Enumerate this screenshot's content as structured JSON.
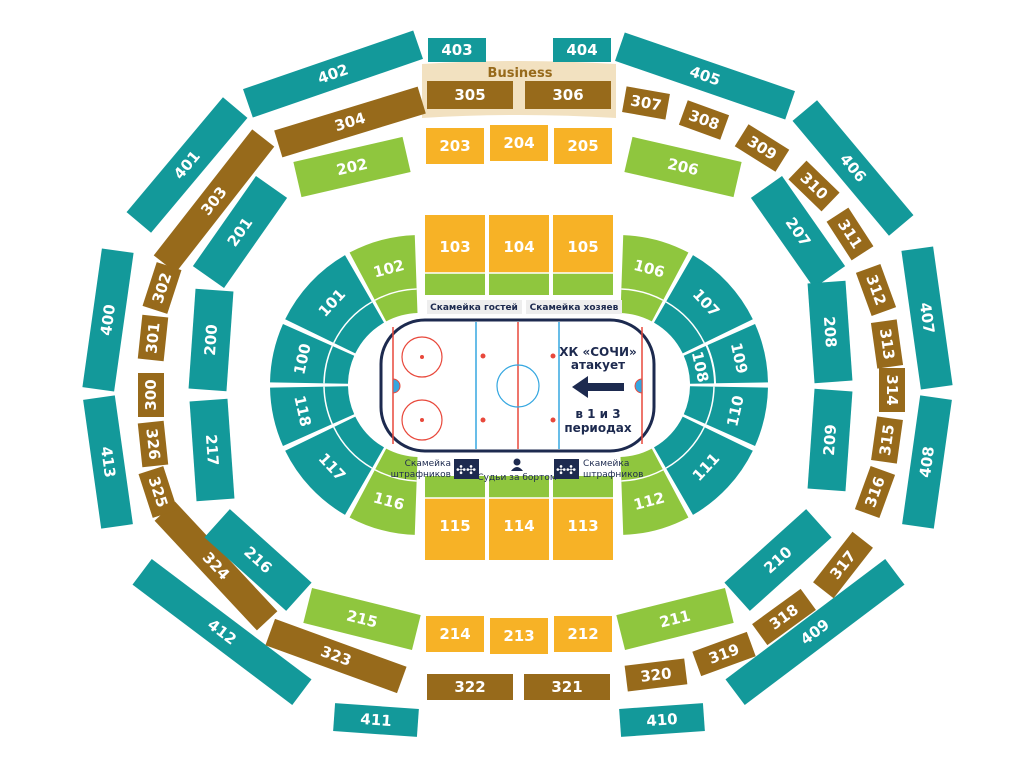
{
  "colors": {
    "tier4": "#13999a",
    "tier3": "#976a1b",
    "premium": "#f7b226",
    "green": "#8fc63e",
    "teal": "#13999a",
    "business_band": "#f2e1c0",
    "navy": "#1d2a4f",
    "rink_red": "#e8483b",
    "rink_blue": "#35a7e0"
  },
  "business_label": "Business",
  "tier4": [
    "403",
    "404",
    "402",
    "405",
    "401",
    "406",
    "400",
    "407",
    "413",
    "408",
    "412",
    "409",
    "411",
    "410"
  ],
  "tier3": [
    "305",
    "306",
    "304",
    "307",
    "308",
    "309",
    "310",
    "311",
    "312",
    "313",
    "314",
    "315",
    "316",
    "317",
    "318",
    "319",
    "320",
    "321",
    "322",
    "323",
    "324",
    "325",
    "326",
    "300",
    "301",
    "302",
    "303"
  ],
  "tier2": [
    {
      "label": "203",
      "color": "premium"
    },
    {
      "label": "204",
      "color": "premium"
    },
    {
      "label": "205",
      "color": "premium"
    },
    {
      "label": "202",
      "color": "green"
    },
    {
      "label": "206",
      "color": "green"
    },
    {
      "label": "201",
      "color": "teal"
    },
    {
      "label": "207",
      "color": "teal"
    },
    {
      "label": "200",
      "color": "teal"
    },
    {
      "label": "208",
      "color": "teal"
    },
    {
      "label": "217",
      "color": "teal"
    },
    {
      "label": "209",
      "color": "teal"
    },
    {
      "label": "216",
      "color": "teal"
    },
    {
      "label": "210",
      "color": "teal"
    },
    {
      "label": "215",
      "color": "green"
    },
    {
      "label": "211",
      "color": "green"
    },
    {
      "label": "214",
      "color": "premium"
    },
    {
      "label": "213",
      "color": "premium"
    },
    {
      "label": "212",
      "color": "premium"
    }
  ],
  "tier1": [
    {
      "label": "103",
      "color": "premium"
    },
    {
      "label": "104",
      "color": "premium"
    },
    {
      "label": "105",
      "color": "premium"
    },
    {
      "label": "115",
      "color": "premium"
    },
    {
      "label": "114",
      "color": "premium"
    },
    {
      "label": "113",
      "color": "premium"
    },
    {
      "label": "102",
      "color": "green"
    },
    {
      "label": "106",
      "color": "green"
    },
    {
      "label": "116",
      "color": "green"
    },
    {
      "label": "112",
      "color": "green"
    },
    {
      "label": "101",
      "color": "teal"
    },
    {
      "label": "100",
      "color": "teal"
    },
    {
      "label": "118",
      "color": "teal"
    },
    {
      "label": "117",
      "color": "teal"
    },
    {
      "label": "107",
      "color": "teal"
    },
    {
      "label": "108",
      "color": "teal"
    },
    {
      "label": "109",
      "color": "teal"
    },
    {
      "label": "110",
      "color": "teal"
    },
    {
      "label": "111",
      "color": "teal"
    }
  ],
  "rink": {
    "guest_bench": "Скамейка гостей",
    "home_bench": "Скамейка хозяев",
    "penalty_left": [
      "Скамейка",
      "штрафников"
    ],
    "penalty_right": [
      "Скамейка",
      "штрафников"
    ],
    "judges": "Судьи за бортом",
    "attack_lines": [
      "ХК «СОЧИ»",
      "атакует",
      "в 1 и 3",
      "периодах"
    ],
    "attack_direction": "left"
  }
}
